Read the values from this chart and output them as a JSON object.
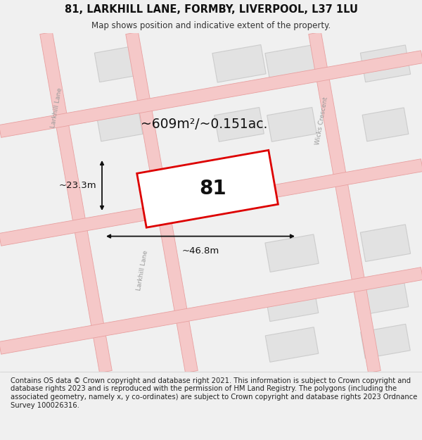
{
  "title": "81, LARKHILL LANE, FORMBY, LIVERPOOL, L37 1LU",
  "subtitle": "Map shows position and indicative extent of the property.",
  "footer": "Contains OS data © Crown copyright and database right 2021. This information is subject to Crown copyright and database rights 2023 and is reproduced with the permission of HM Land Registry. The polygons (including the associated geometry, namely x, y co-ordinates) are subject to Crown copyright and database rights 2023 Ordnance Survey 100026316.",
  "bg_color": "#f0f0f0",
  "map_bg": "#f8f8f8",
  "area_label": "~609m²/~0.151ac.",
  "plot_number": "81",
  "dim_width": "~46.8m",
  "dim_height": "~23.3m",
  "road_label_left1": "Larkhill Lane",
  "road_label_left2": "Larkhill Lane",
  "road_label_right": "Wicks Crescent",
  "plot_color": "#dd0000",
  "road_fill": "#f5c8c8",
  "road_edge": "#e8a0a0",
  "building_fill": "#e2e2e2",
  "building_edge": "#cccccc",
  "dim_color": "#111111",
  "title_fontsize": 10.5,
  "subtitle_fontsize": 8.5,
  "footer_fontsize": 7.2,
  "road_label_color": "#999999",
  "road_lw": 0.6,
  "building_lw": 0.8
}
